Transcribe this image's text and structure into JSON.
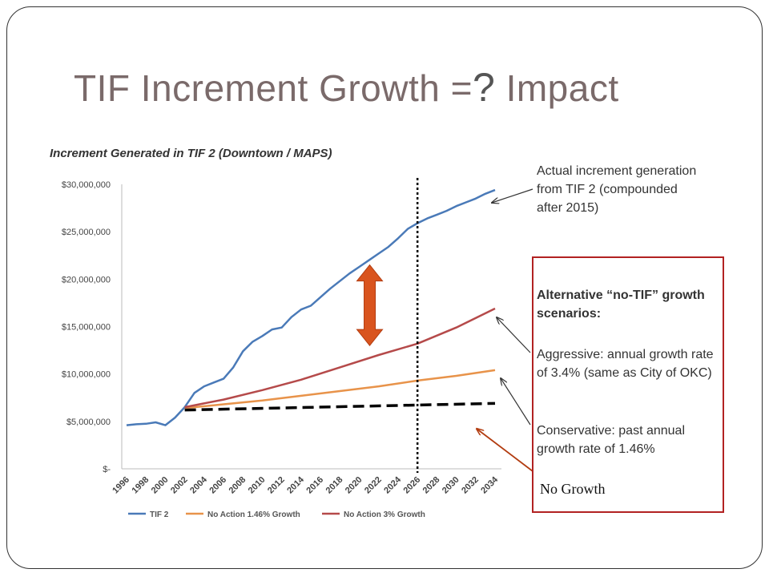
{
  "slide": {
    "title_main": "TIF Increment Growth =",
    "title_q": "?",
    "title_end": " Impact"
  },
  "notes": {
    "actual": "Actual increment generation from TIF 2 (compounded after 2015)",
    "alt_title": "Alternative “no-TIF” growth scenarios:",
    "aggressive": "Aggressive:  annual growth rate of 3.4% (same as City of OKC)",
    "conservative": "Conservative:  past annual growth rate of 1.46%",
    "no_growth": "No Growth"
  },
  "chart_data": {
    "type": "line",
    "title": "Increment Generated in TIF 2 (Downtown / MAPS)",
    "x_ticks": [
      "1996",
      "1998",
      "2000",
      "2002",
      "2004",
      "2006",
      "2008",
      "2010",
      "2012",
      "2014",
      "2016",
      "2018",
      "2020",
      "2022",
      "2024",
      "2026",
      "2028",
      "2030",
      "2032",
      "2034"
    ],
    "y_ticks": [
      "$-",
      "$5,000,000",
      "$10,000,000",
      "$15,000,000",
      "$20,000,000",
      "$25,000,000",
      "$30,000,000"
    ],
    "ylim": [
      0,
      30000000
    ],
    "xlim": [
      1996,
      2034
    ],
    "legend": "bottom",
    "series": [
      {
        "name": "TIF 2",
        "color": "#4a7ab8",
        "x": [
          1996,
          1997,
          1998,
          1999,
          2000,
          2001,
          2002,
          2003,
          2004,
          2005,
          2006,
          2007,
          2008,
          2009,
          2010,
          2011,
          2012,
          2013,
          2014,
          2015,
          2016,
          2017,
          2018,
          2019,
          2020,
          2021,
          2022,
          2023,
          2024,
          2025,
          2026,
          2027,
          2028,
          2029,
          2030,
          2031,
          2032,
          2033,
          2034
        ],
        "values": [
          4600000,
          4700000,
          4750000,
          4900000,
          4600000,
          5400000,
          6500000,
          8000000,
          8700000,
          9100000,
          9500000,
          10700000,
          12400000,
          13400000,
          14000000,
          14700000,
          14900000,
          16000000,
          16800000,
          17200000,
          18100000,
          19000000,
          19800000,
          20600000,
          21300000,
          22000000,
          22700000,
          23400000,
          24300000,
          25300000,
          25900000,
          26400000,
          26800000,
          27200000,
          27700000,
          28100000,
          28500000,
          29000000,
          29400000
        ]
      },
      {
        "name": "No Action 1.46% Growth",
        "color": "#e8934a",
        "x": [
          2002,
          2006,
          2010,
          2014,
          2018,
          2022,
          2026,
          2030,
          2034
        ],
        "values": [
          6400000,
          6800000,
          7200000,
          7700000,
          8200000,
          8700000,
          9300000,
          9800000,
          10400000
        ]
      },
      {
        "name": "No Action 3% Growth",
        "color": "#b54a4a",
        "x": [
          2002,
          2006,
          2010,
          2014,
          2018,
          2022,
          2026,
          2030,
          2034
        ],
        "values": [
          6500000,
          7300000,
          8300000,
          9400000,
          10700000,
          12000000,
          13200000,
          14900000,
          16900000
        ]
      }
    ],
    "no_growth_line": {
      "color": "#000000",
      "x": [
        2002,
        2034
      ],
      "values": [
        6200000,
        6900000
      ]
    },
    "marker_year": 2026,
    "impact_arrow": {
      "color": "#d9541e",
      "from": 13000000,
      "to": 21500000,
      "year": 2020
    }
  }
}
